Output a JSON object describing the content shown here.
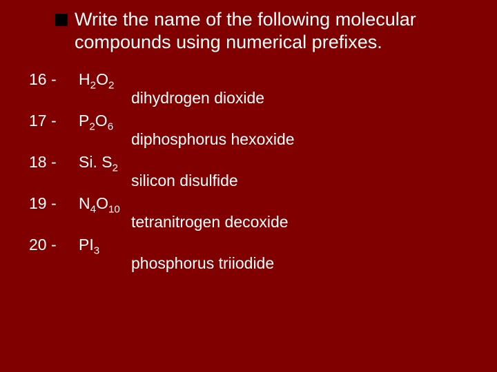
{
  "title": "Write the name of the following molecular compounds using numerical prefixes.",
  "items": [
    {
      "num": "16 -",
      "base1": "H",
      "sub1": "2",
      "base2": "O",
      "sub2": "2",
      "answer": "dihydrogen dioxide"
    },
    {
      "num": "17 -",
      "base1": "P",
      "sub1": "2",
      "base2": "O",
      "sub2": "6",
      "answer": "diphosphorus hexoxide"
    },
    {
      "num": "18 -",
      "base1": "Si. S",
      "sub1": "",
      "base2": "",
      "sub2": "2",
      "answer": "silicon disulfide"
    },
    {
      "num": "19 -",
      "base1": "N",
      "sub1": "4",
      "base2": "O",
      "sub2": "10",
      "answer": "tetranitrogen decoxide"
    },
    {
      "num": "20 -",
      "base1": "PI",
      "sub1": "",
      "base2": "",
      "sub2": "3",
      "answer": "phosphorus triiodide"
    }
  ]
}
